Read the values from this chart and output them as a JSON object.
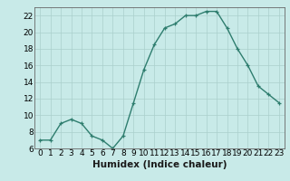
{
  "x": [
    0,
    1,
    2,
    3,
    4,
    5,
    6,
    7,
    8,
    9,
    10,
    11,
    12,
    13,
    14,
    15,
    16,
    17,
    18,
    19,
    20,
    21,
    22,
    23
  ],
  "y": [
    7.0,
    7.0,
    9.0,
    9.5,
    9.0,
    7.5,
    7.0,
    6.0,
    7.5,
    11.5,
    15.5,
    18.5,
    20.5,
    21.0,
    22.0,
    22.0,
    22.5,
    22.5,
    20.5,
    18.0,
    16.0,
    13.5,
    12.5,
    11.5
  ],
  "xlabel": "Humidex (Indice chaleur)",
  "ylim": [
    6,
    23
  ],
  "yticks": [
    6,
    8,
    10,
    12,
    14,
    16,
    18,
    20,
    22
  ],
  "xticks": [
    0,
    1,
    2,
    3,
    4,
    5,
    6,
    7,
    8,
    9,
    10,
    11,
    12,
    13,
    14,
    15,
    16,
    17,
    18,
    19,
    20,
    21,
    22,
    23
  ],
  "line_color": "#2e7d6e",
  "marker": "+",
  "bg_color": "#c8eae8",
  "grid_color": "#aacfcc",
  "tick_label_fontsize": 6.5,
  "xlabel_fontsize": 7.5
}
